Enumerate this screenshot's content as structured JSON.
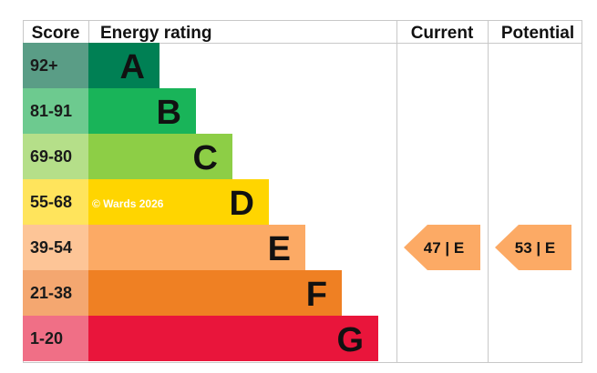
{
  "chart_data": {
    "type": "bar",
    "headers": {
      "score": "Score",
      "rating": "Energy rating",
      "current": "Current",
      "potential": "Potential"
    },
    "bands": [
      {
        "score": "92+",
        "letter": "A",
        "color": "#008054",
        "score_color": "#5a9d86",
        "letter_color": "#111111"
      },
      {
        "score": "81-91",
        "letter": "B",
        "color": "#19b459",
        "score_color": "#6dca8f",
        "letter_color": "#111111"
      },
      {
        "score": "69-80",
        "letter": "C",
        "color": "#8dce46",
        "score_color": "#b5df89",
        "letter_color": "#111111"
      },
      {
        "score": "55-68",
        "letter": "D",
        "color": "#ffd500",
        "score_color": "#ffe45c",
        "letter_color": "#111111"
      },
      {
        "score": "39-54",
        "letter": "E",
        "color": "#fcaa65",
        "score_color": "#fdc597",
        "letter_color": "#111111"
      },
      {
        "score": "21-38",
        "letter": "F",
        "color": "#ef8023",
        "score_color": "#f4a770",
        "letter_color": "#111111"
      },
      {
        "score": "1-20",
        "letter": "G",
        "color": "#e9153b",
        "score_color": "#f06f86",
        "letter_color": "#111111"
      }
    ],
    "watermark": "© Wards 2026",
    "current": {
      "value": 47,
      "band": "E",
      "label": "47 | E"
    },
    "potential": {
      "value": 53,
      "band": "E",
      "label": "53 | E"
    },
    "arrow_color": "#fcaa65"
  }
}
